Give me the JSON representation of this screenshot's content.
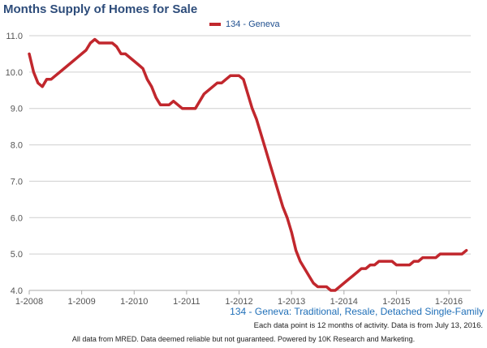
{
  "chart_data": {
    "type": "line",
    "title": "Months Supply of Homes for Sale",
    "subtitle": "134 - Geneva: Traditional, Resale, Detached Single-Family",
    "note": "Each data point is 12 months of activity. Data is from July 13, 2016.",
    "footer": "All data from MRED. Data deemed reliable but not guaranteed. Powered by 10K Research and Marketing.",
    "xlabel": "",
    "ylabel": "",
    "ylim": [
      4.0,
      11.0
    ],
    "yticks": [
      "4.0",
      "5.0",
      "6.0",
      "7.0",
      "8.0",
      "9.0",
      "10.0",
      "11.0"
    ],
    "xticks": [
      "1-2008",
      "1-2009",
      "1-2010",
      "1-2011",
      "1-2012",
      "1-2013",
      "1-2014",
      "1-2015",
      "1-2016"
    ],
    "x_range": [
      "2008-01",
      "2016-06"
    ],
    "grid": "horizontal",
    "legend": "top-center",
    "series": [
      {
        "name": "134 - Geneva",
        "color": "#c1272d",
        "points": [
          [
            "2008-01",
            10.5
          ],
          [
            "2008-02",
            10.0
          ],
          [
            "2008-03",
            9.7
          ],
          [
            "2008-04",
            9.6
          ],
          [
            "2008-05",
            9.8
          ],
          [
            "2008-06",
            9.8
          ],
          [
            "2008-07",
            9.9
          ],
          [
            "2008-08",
            10.0
          ],
          [
            "2008-09",
            10.1
          ],
          [
            "2008-10",
            10.2
          ],
          [
            "2008-11",
            10.3
          ],
          [
            "2008-12",
            10.4
          ],
          [
            "2009-01",
            10.5
          ],
          [
            "2009-02",
            10.6
          ],
          [
            "2009-03",
            10.8
          ],
          [
            "2009-04",
            10.9
          ],
          [
            "2009-05",
            10.8
          ],
          [
            "2009-06",
            10.8
          ],
          [
            "2009-07",
            10.8
          ],
          [
            "2009-08",
            10.8
          ],
          [
            "2009-09",
            10.7
          ],
          [
            "2009-10",
            10.5
          ],
          [
            "2009-11",
            10.5
          ],
          [
            "2009-12",
            10.4
          ],
          [
            "2010-01",
            10.3
          ],
          [
            "2010-02",
            10.2
          ],
          [
            "2010-03",
            10.1
          ],
          [
            "2010-04",
            9.8
          ],
          [
            "2010-05",
            9.6
          ],
          [
            "2010-06",
            9.3
          ],
          [
            "2010-07",
            9.1
          ],
          [
            "2010-08",
            9.1
          ],
          [
            "2010-09",
            9.1
          ],
          [
            "2010-10",
            9.2
          ],
          [
            "2010-11",
            9.1
          ],
          [
            "2010-12",
            9.0
          ],
          [
            "2011-01",
            9.0
          ],
          [
            "2011-02",
            9.0
          ],
          [
            "2011-03",
            9.0
          ],
          [
            "2011-04",
            9.2
          ],
          [
            "2011-05",
            9.4
          ],
          [
            "2011-06",
            9.5
          ],
          [
            "2011-07",
            9.6
          ],
          [
            "2011-08",
            9.7
          ],
          [
            "2011-09",
            9.7
          ],
          [
            "2011-10",
            9.8
          ],
          [
            "2011-11",
            9.9
          ],
          [
            "2011-12",
            9.9
          ],
          [
            "2012-01",
            9.9
          ],
          [
            "2012-02",
            9.8
          ],
          [
            "2012-03",
            9.4
          ],
          [
            "2012-04",
            9.0
          ],
          [
            "2012-05",
            8.7
          ],
          [
            "2012-06",
            8.3
          ],
          [
            "2012-07",
            7.9
          ],
          [
            "2012-08",
            7.5
          ],
          [
            "2012-09",
            7.1
          ],
          [
            "2012-10",
            6.7
          ],
          [
            "2012-11",
            6.3
          ],
          [
            "2012-12",
            6.0
          ],
          [
            "2013-01",
            5.6
          ],
          [
            "2013-02",
            5.1
          ],
          [
            "2013-03",
            4.8
          ],
          [
            "2013-04",
            4.6
          ],
          [
            "2013-05",
            4.4
          ],
          [
            "2013-06",
            4.2
          ],
          [
            "2013-07",
            4.1
          ],
          [
            "2013-08",
            4.1
          ],
          [
            "2013-09",
            4.1
          ],
          [
            "2013-10",
            4.0
          ],
          [
            "2013-11",
            4.0
          ],
          [
            "2013-12",
            4.1
          ],
          [
            "2014-01",
            4.2
          ],
          [
            "2014-02",
            4.3
          ],
          [
            "2014-03",
            4.4
          ],
          [
            "2014-04",
            4.5
          ],
          [
            "2014-05",
            4.6
          ],
          [
            "2014-06",
            4.6
          ],
          [
            "2014-07",
            4.7
          ],
          [
            "2014-08",
            4.7
          ],
          [
            "2014-09",
            4.8
          ],
          [
            "2014-10",
            4.8
          ],
          [
            "2014-11",
            4.8
          ],
          [
            "2014-12",
            4.8
          ],
          [
            "2015-01",
            4.7
          ],
          [
            "2015-02",
            4.7
          ],
          [
            "2015-03",
            4.7
          ],
          [
            "2015-04",
            4.7
          ],
          [
            "2015-05",
            4.8
          ],
          [
            "2015-06",
            4.8
          ],
          [
            "2015-07",
            4.9
          ],
          [
            "2015-08",
            4.9
          ],
          [
            "2015-09",
            4.9
          ],
          [
            "2015-10",
            4.9
          ],
          [
            "2015-11",
            5.0
          ],
          [
            "2015-12",
            5.0
          ],
          [
            "2016-01",
            5.0
          ],
          [
            "2016-02",
            5.0
          ],
          [
            "2016-03",
            5.0
          ],
          [
            "2016-04",
            5.0
          ],
          [
            "2016-05",
            5.1
          ]
        ]
      }
    ]
  }
}
